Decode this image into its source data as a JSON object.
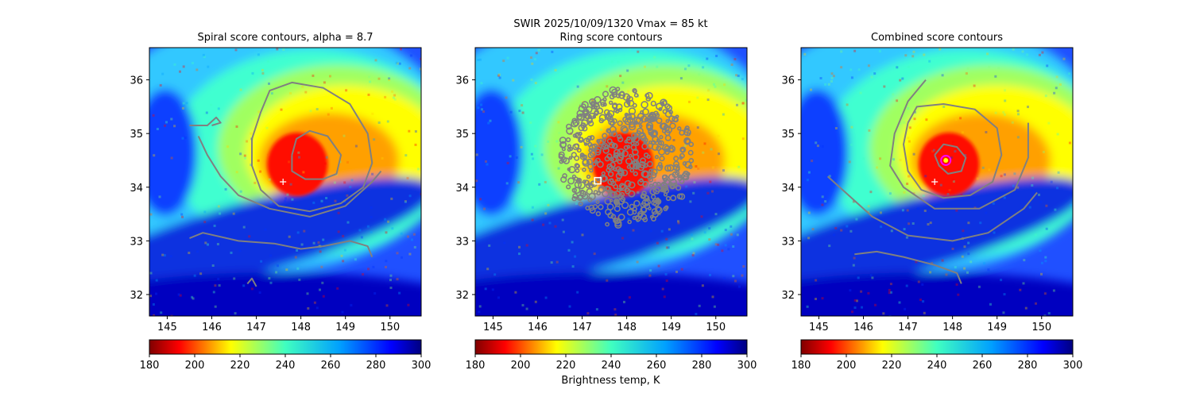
{
  "figure": {
    "title_line1": "SWIR  2025/10/09/1320    Vmax = 85 kt",
    "colorbar_label": "Brightness temp, K"
  },
  "colors": {
    "contour": "#808080",
    "marker": "#ffffff",
    "center_marker": "#ff00ff",
    "frame": "#000000"
  },
  "chart_data": [
    {
      "type": "heatmap",
      "title": "Spiral score contours, alpha =  8.7",
      "xlim": [
        144.6,
        150.7
      ],
      "ylim": [
        31.6,
        36.6
      ],
      "xticks": [
        145,
        146,
        147,
        148,
        149,
        150
      ],
      "yticks": [
        32,
        33,
        34,
        35,
        36
      ],
      "colormap": "jet_r",
      "storm_center": [
        148.1,
        34.5
      ],
      "first_guess_marker": [
        147.6,
        34.1
      ],
      "contours": [
        [
          [
            147.1,
            35.4
          ],
          [
            147.3,
            35.8
          ],
          [
            147.8,
            35.95
          ],
          [
            148.5,
            35.85
          ],
          [
            149.1,
            35.55
          ],
          [
            149.5,
            35.0
          ],
          [
            149.6,
            34.45
          ],
          [
            149.4,
            34.0
          ],
          [
            148.9,
            33.7
          ],
          [
            148.2,
            33.55
          ],
          [
            147.5,
            33.65
          ],
          [
            147.1,
            33.95
          ],
          [
            146.9,
            34.4
          ],
          [
            146.9,
            34.9
          ],
          [
            147.1,
            35.4
          ]
        ],
        [
          [
            147.8,
            34.6
          ],
          [
            147.9,
            34.9
          ],
          [
            148.2,
            35.05
          ],
          [
            148.6,
            34.95
          ],
          [
            148.9,
            34.6
          ],
          [
            148.8,
            34.25
          ],
          [
            148.5,
            34.15
          ],
          [
            148.1,
            34.15
          ],
          [
            147.8,
            34.3
          ],
          [
            147.8,
            34.6
          ]
        ],
        [
          [
            145.5,
            35.15
          ],
          [
            145.9,
            35.15
          ],
          [
            146.1,
            35.3
          ],
          [
            146.2,
            35.2
          ],
          [
            146.0,
            35.15
          ]
        ],
        [
          [
            145.7,
            34.95
          ],
          [
            145.9,
            34.6
          ],
          [
            146.2,
            34.2
          ],
          [
            146.6,
            33.85
          ],
          [
            147.3,
            33.6
          ],
          [
            148.2,
            33.45
          ],
          [
            149.0,
            33.65
          ],
          [
            149.6,
            34.1
          ],
          [
            149.8,
            34.3
          ]
        ],
        [
          [
            145.5,
            33.05
          ],
          [
            145.8,
            33.15
          ],
          [
            146.6,
            33.0
          ],
          [
            147.4,
            32.95
          ],
          [
            148.0,
            32.85
          ],
          [
            148.5,
            32.9
          ],
          [
            149.1,
            33.0
          ],
          [
            149.5,
            32.9
          ],
          [
            149.6,
            32.7
          ]
        ],
        [
          [
            146.8,
            32.2
          ],
          [
            146.9,
            32.3
          ],
          [
            147.0,
            32.15
          ]
        ]
      ]
    },
    {
      "type": "heatmap",
      "title": "Ring score contours",
      "xlim": [
        144.6,
        150.7
      ],
      "ylim": [
        31.6,
        36.6
      ],
      "xticks": [
        145,
        146,
        147,
        148,
        149,
        150
      ],
      "yticks": [
        32,
        33,
        34,
        35,
        36
      ],
      "colormap": "jet_r",
      "storm_center": [
        148.1,
        34.5
      ],
      "first_guess_marker": [
        147.35,
        34.12
      ],
      "ring_region": {
        "center": [
          148.0,
          34.55
        ],
        "rx": 1.5,
        "ry": 1.3
      }
    },
    {
      "type": "heatmap",
      "title": "Combined score contours",
      "xlim": [
        144.6,
        150.7
      ],
      "ylim": [
        31.6,
        36.6
      ],
      "xticks": [
        145,
        146,
        147,
        148,
        149,
        150
      ],
      "yticks": [
        32,
        33,
        34,
        35,
        36
      ],
      "colormap": "jet_r",
      "storm_center": [
        148.1,
        34.5
      ],
      "first_guess_marker": [
        147.6,
        34.1
      ],
      "center_estimate": [
        147.85,
        34.5
      ],
      "contours": [
        [
          [
            147.0,
            35.2
          ],
          [
            147.2,
            35.5
          ],
          [
            147.8,
            35.55
          ],
          [
            148.5,
            35.45
          ],
          [
            149.0,
            35.1
          ],
          [
            149.1,
            34.6
          ],
          [
            148.9,
            34.1
          ],
          [
            148.4,
            33.85
          ],
          [
            147.8,
            33.8
          ],
          [
            147.3,
            33.95
          ],
          [
            147.0,
            34.3
          ],
          [
            146.9,
            34.8
          ],
          [
            147.0,
            35.2
          ]
        ],
        [
          [
            147.6,
            34.6
          ],
          [
            147.8,
            34.8
          ],
          [
            148.1,
            34.75
          ],
          [
            148.3,
            34.55
          ],
          [
            148.2,
            34.3
          ],
          [
            147.9,
            34.25
          ],
          [
            147.7,
            34.4
          ],
          [
            147.6,
            34.6
          ]
        ],
        [
          [
            147.4,
            36.0
          ],
          [
            147.0,
            35.6
          ],
          [
            146.7,
            35.0
          ],
          [
            146.6,
            34.4
          ],
          [
            146.9,
            34.0
          ],
          [
            147.6,
            33.6
          ],
          [
            148.6,
            33.6
          ],
          [
            149.4,
            33.95
          ],
          [
            149.7,
            34.55
          ],
          [
            149.7,
            35.2
          ]
        ],
        [
          [
            145.2,
            34.2
          ],
          [
            145.6,
            33.9
          ],
          [
            146.2,
            33.45
          ],
          [
            147.0,
            33.1
          ],
          [
            148.0,
            33.0
          ],
          [
            148.8,
            33.15
          ],
          [
            149.6,
            33.6
          ],
          [
            149.9,
            33.9
          ]
        ],
        [
          [
            145.8,
            32.75
          ],
          [
            146.3,
            32.8
          ],
          [
            146.9,
            32.7
          ],
          [
            147.6,
            32.55
          ],
          [
            148.1,
            32.4
          ],
          [
            148.2,
            32.2
          ]
        ]
      ]
    }
  ],
  "colorbars": [
    {
      "ticks": [
        180,
        200,
        220,
        240,
        260,
        280,
        300
      ],
      "range": [
        180,
        300
      ]
    },
    {
      "ticks": [
        180,
        200,
        220,
        240,
        260,
        280,
        300
      ],
      "range": [
        180,
        300
      ]
    },
    {
      "ticks": [
        180,
        200,
        220,
        240,
        260,
        280,
        300
      ],
      "range": [
        180,
        300
      ]
    }
  ]
}
